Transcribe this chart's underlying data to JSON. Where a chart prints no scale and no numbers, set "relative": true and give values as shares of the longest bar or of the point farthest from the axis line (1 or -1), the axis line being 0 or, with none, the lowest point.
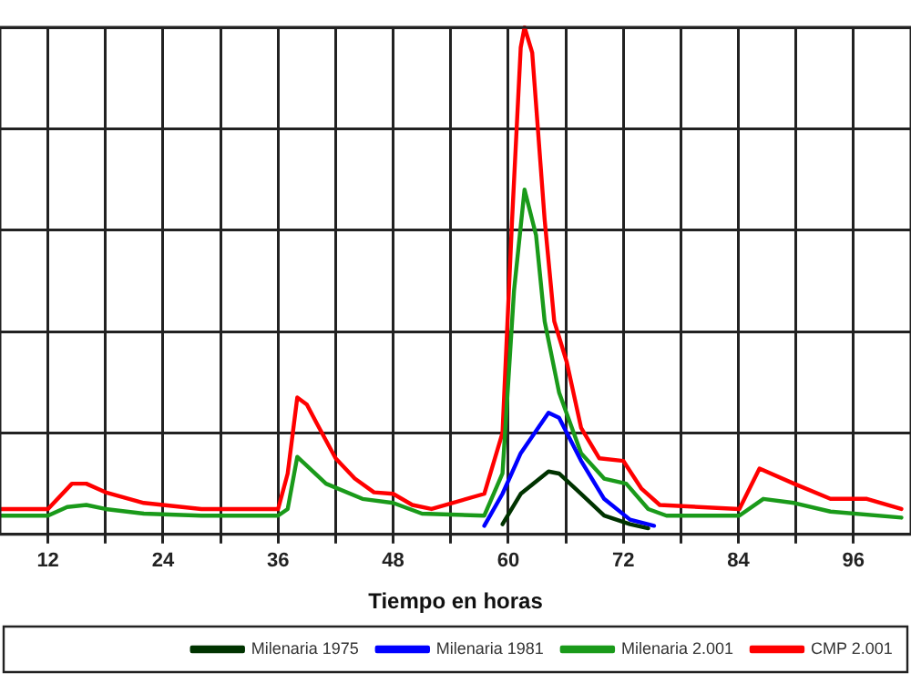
{
  "chart_data": {
    "type": "line",
    "relative": true,
    "xlabel": "Tiempo en horas",
    "xlim": [
      7,
      102
    ],
    "xticks": [
      12,
      {
        "value": 18,
        "label": null
      },
      24,
      {
        "value": 30,
        "label": null
      },
      36,
      {
        "value": 42,
        "label": null
      },
      48,
      {
        "value": 54,
        "label": null
      },
      60,
      {
        "value": 66,
        "label": null
      },
      72,
      {
        "value": 78,
        "label": null
      },
      84,
      {
        "value": 90,
        "label": null
      },
      96
    ],
    "grid": true,
    "legend": "bottom",
    "marker": "none",
    "line_style": "solid",
    "series": [
      {
        "name": "Milenaria 1975",
        "color": "#003300",
        "x": [
          59.4,
          61.3,
          64.2,
          65.3,
          67.6,
          70,
          72.7,
          74.6
        ],
        "values": [
          0.02,
          0.08,
          0.124,
          0.12,
          0.08,
          0.037,
          0.02,
          0.012
        ]
      },
      {
        "name": "Milenaria 1981",
        "color": "#0000ff",
        "x": [
          57.5,
          59.4,
          61.3,
          64.2,
          65.3,
          67.6,
          70,
          72.7,
          75.2
        ],
        "values": [
          0.017,
          0.08,
          0.16,
          0.24,
          0.23,
          0.145,
          0.07,
          0.029,
          0.017
        ]
      },
      {
        "name": "Milenaria 2.001",
        "color": "#1a9a1a",
        "x": [
          7,
          12,
          14,
          16,
          18,
          22,
          28,
          36,
          37,
          38,
          41,
          44.8,
          48,
          51,
          57.5,
          59.4,
          60.6,
          61.7,
          62.9,
          63.8,
          65.3,
          67.6,
          70,
          72.3,
          74.6,
          76.5,
          84.1,
          86.6,
          89.8,
          93.6,
          101
        ],
        "values": [
          0.037,
          0.037,
          0.054,
          0.058,
          0.05,
          0.041,
          0.037,
          0.037,
          0.05,
          0.153,
          0.1,
          0.07,
          0.062,
          0.041,
          0.037,
          0.12,
          0.48,
          0.68,
          0.59,
          0.42,
          0.28,
          0.16,
          0.11,
          0.1,
          0.05,
          0.037,
          0.037,
          0.07,
          0.062,
          0.045,
          0.033
        ]
      },
      {
        "name": "CMP 2.001",
        "color": "#ff0000",
        "x": [
          7,
          12,
          14.5,
          16,
          18,
          22,
          24,
          28,
          36,
          37,
          38,
          39,
          40,
          42,
          44,
          46,
          48,
          50,
          52,
          57.5,
          59.4,
          60.4,
          61.3,
          61.7,
          62.5,
          63.8,
          64.8,
          66.1,
          67.6,
          69.5,
          72,
          73.9,
          75.8,
          84.1,
          86.2,
          89.8,
          93.6,
          97.4,
          101
        ],
        "values": [
          0.05,
          0.05,
          0.1,
          0.1,
          0.083,
          0.062,
          0.058,
          0.05,
          0.05,
          0.12,
          0.27,
          0.256,
          0.22,
          0.15,
          0.11,
          0.083,
          0.08,
          0.058,
          0.05,
          0.08,
          0.2,
          0.62,
          0.96,
          1,
          0.95,
          0.62,
          0.42,
          0.34,
          0.21,
          0.15,
          0.145,
          0.09,
          0.058,
          0.05,
          0.13,
          0.1,
          0.07,
          0.07,
          0.05
        ]
      }
    ]
  }
}
